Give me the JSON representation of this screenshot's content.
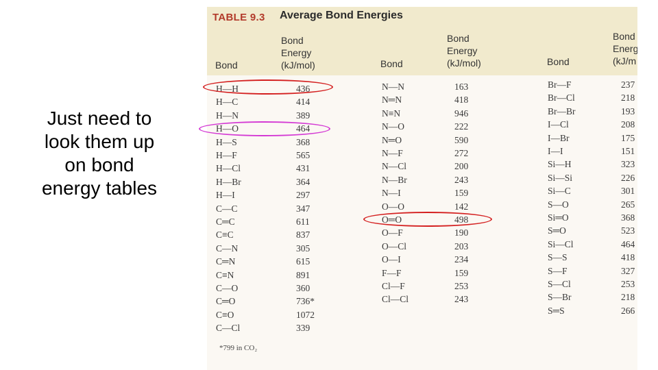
{
  "side_text": [
    "Just need to",
    "look them up",
    "on bond",
    "energy tables"
  ],
  "table": {
    "tag": "TABLE 9.3",
    "title": "Average Bond Energies",
    "headers": {
      "bond": "Bond",
      "energy": [
        "Bond",
        "Energy",
        "(kJ/mol)"
      ],
      "energy_truncated": [
        "Bond",
        "Energ",
        "(kJ/m"
      ]
    },
    "columns": [
      {
        "rows": [
          {
            "bond": "H—H",
            "value": "436"
          },
          {
            "bond": "H—C",
            "value": "414"
          },
          {
            "bond": "H—N",
            "value": "389"
          },
          {
            "bond": "H—O",
            "value": "464"
          },
          {
            "bond": "H—S",
            "value": "368"
          },
          {
            "bond": "H—F",
            "value": "565"
          },
          {
            "bond": "H—Cl",
            "value": "431"
          },
          {
            "bond": "H—Br",
            "value": "364"
          },
          {
            "bond": "H—I",
            "value": "297"
          },
          {
            "bond": "C—C",
            "value": "347"
          },
          {
            "bond": "C═C",
            "value": "611"
          },
          {
            "bond": "C≡C",
            "value": "837"
          },
          {
            "bond": "C—N",
            "value": "305"
          },
          {
            "bond": "C═N",
            "value": "615"
          },
          {
            "bond": "C≡N",
            "value": "891"
          },
          {
            "bond": "C—O",
            "value": "360"
          },
          {
            "bond": "C═O",
            "value": "736*"
          },
          {
            "bond": "C≡O",
            "value": "1072"
          },
          {
            "bond": "C—Cl",
            "value": "339"
          }
        ]
      },
      {
        "rows": [
          {
            "bond": "N—N",
            "value": "163"
          },
          {
            "bond": "N═N",
            "value": "418"
          },
          {
            "bond": "N≡N",
            "value": "946"
          },
          {
            "bond": "N—O",
            "value": "222"
          },
          {
            "bond": "N═O",
            "value": "590"
          },
          {
            "bond": "N—F",
            "value": "272"
          },
          {
            "bond": "N—Cl",
            "value": "200"
          },
          {
            "bond": "N—Br",
            "value": "243"
          },
          {
            "bond": "N—I",
            "value": "159"
          },
          {
            "bond": "O—O",
            "value": "142"
          },
          {
            "bond": "O═O",
            "value": "498"
          },
          {
            "bond": "O—F",
            "value": "190"
          },
          {
            "bond": "O—Cl",
            "value": "203"
          },
          {
            "bond": "O—I",
            "value": "234"
          },
          {
            "bond": "F—F",
            "value": "159"
          },
          {
            "bond": "Cl—F",
            "value": "253"
          },
          {
            "bond": "Cl—Cl",
            "value": "243"
          }
        ]
      },
      {
        "rows": [
          {
            "bond": "Br—F",
            "value": "237"
          },
          {
            "bond": "Br—Cl",
            "value": "218"
          },
          {
            "bond": "Br—Br",
            "value": "193"
          },
          {
            "bond": "I—Cl",
            "value": "208"
          },
          {
            "bond": "I—Br",
            "value": "175"
          },
          {
            "bond": "I—I",
            "value": "151"
          },
          {
            "bond": "Si—H",
            "value": "323"
          },
          {
            "bond": "Si—Si",
            "value": "226"
          },
          {
            "bond": "Si—C",
            "value": "301"
          },
          {
            "bond": "S—O",
            "value": "265"
          },
          {
            "bond": "Si═O",
            "value": "368"
          },
          {
            "bond": "S═O",
            "value": "523"
          },
          {
            "bond": "Si—Cl",
            "value": "464"
          },
          {
            "bond": "S—S",
            "value": "418"
          },
          {
            "bond": "S—F",
            "value": "327"
          },
          {
            "bond": "S—Cl",
            "value": "253"
          },
          {
            "bond": "S—Br",
            "value": "218"
          },
          {
            "bond": "S═S",
            "value": "266"
          }
        ]
      }
    ],
    "footnote": "*799 in CO₂"
  },
  "highlights": [
    {
      "name": "highlight-h-h",
      "color": "#d42020"
    },
    {
      "name": "highlight-h-o",
      "color": "#d43ad4"
    },
    {
      "name": "highlight-o-o-double",
      "color": "#d42020"
    }
  ],
  "colors": {
    "header_band": "#f1eacd",
    "table_tag": "#b23a2a",
    "page_background": "#fbf8f3"
  }
}
